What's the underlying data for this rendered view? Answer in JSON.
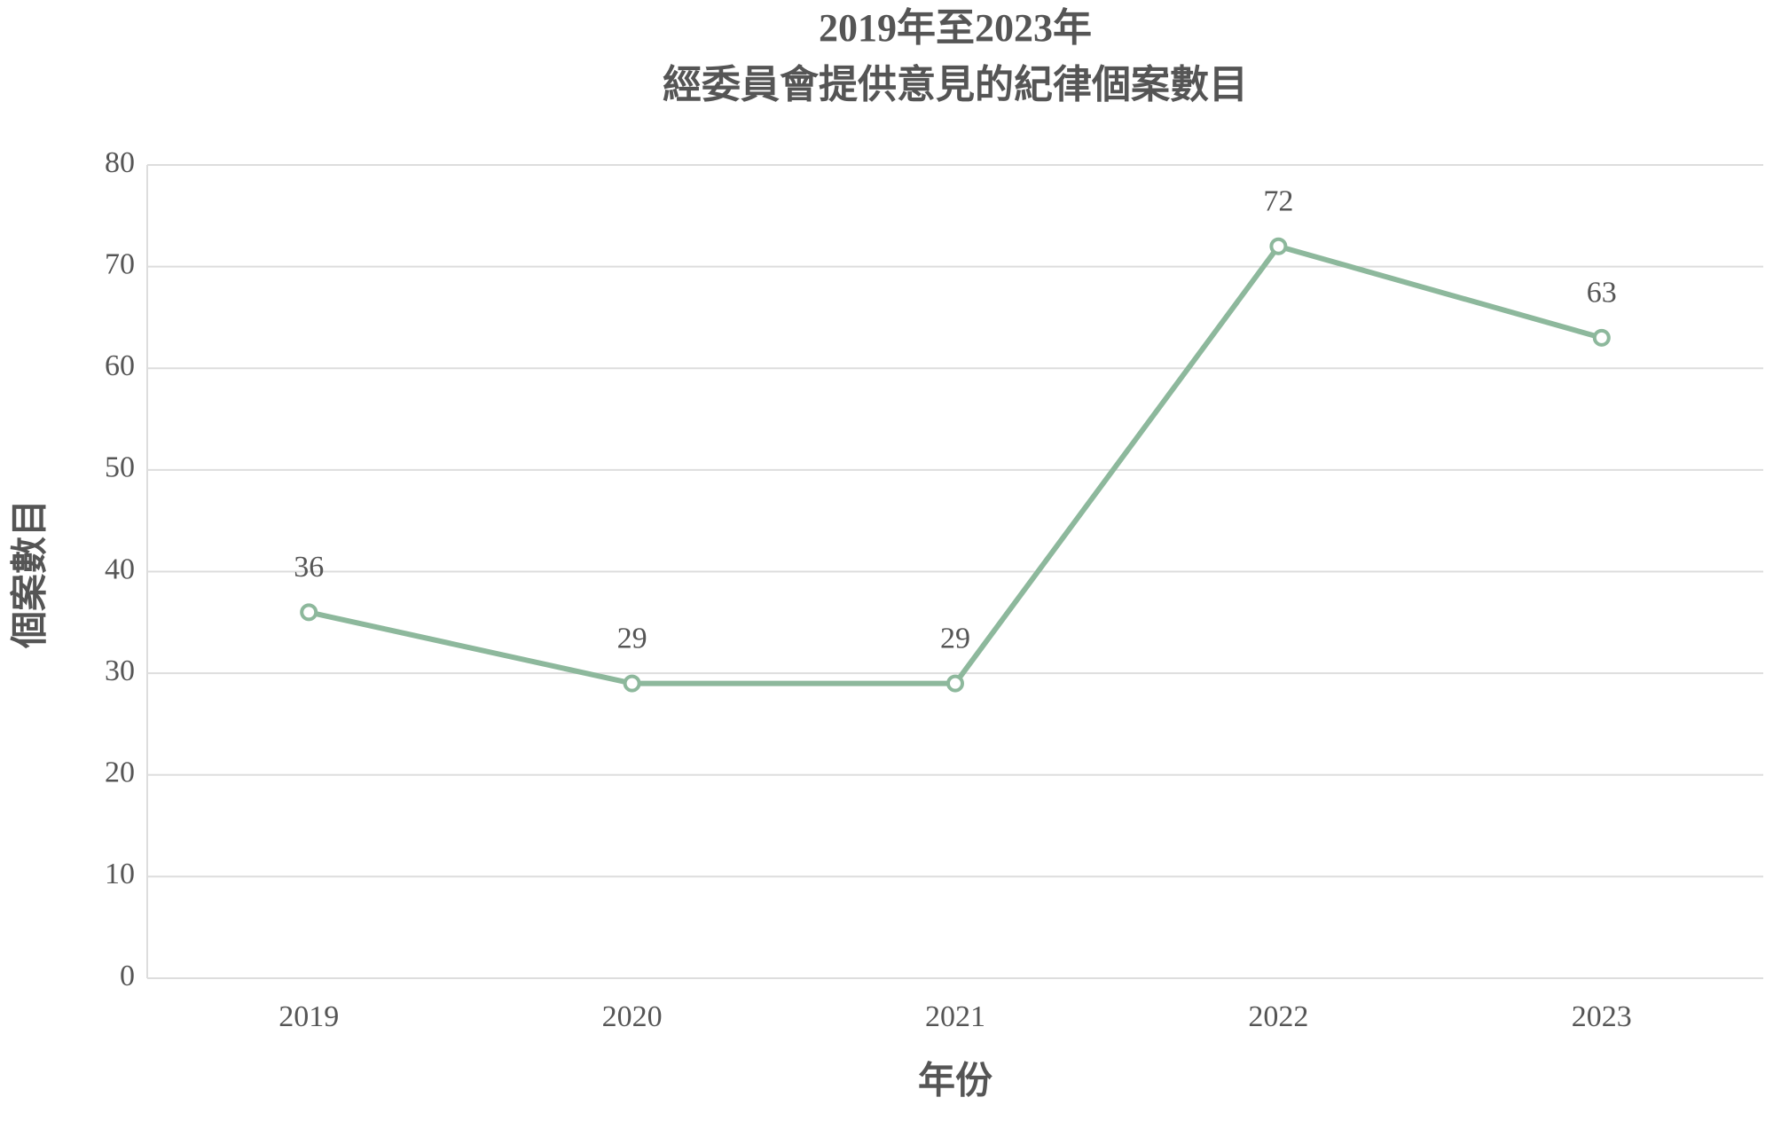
{
  "chart_data": {
    "type": "line",
    "title": [
      "2019年至2023年",
      "經委員會提供意見的紀律個案數目"
    ],
    "x_label": "年份",
    "y_label": "個案數目",
    "categories": [
      "2019",
      "2020",
      "2021",
      "2022",
      "2023"
    ],
    "series": [
      {
        "name": "個案數目",
        "color": "#8db89c",
        "values": [
          36,
          29,
          29,
          72,
          63
        ]
      }
    ],
    "ylim": [
      0,
      80
    ],
    "yticks": [
      0,
      10,
      20,
      30,
      40,
      50,
      60,
      70,
      80
    ],
    "grid": true
  }
}
